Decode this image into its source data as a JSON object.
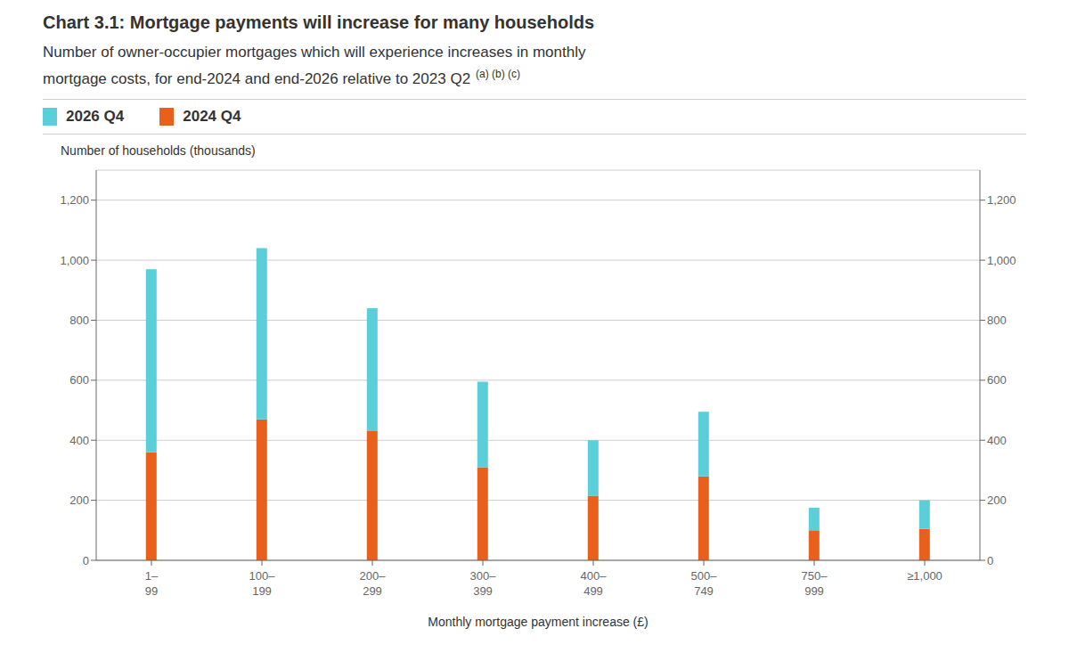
{
  "chart_data": {
    "type": "bar",
    "stacked": true,
    "title": "Chart 3.1: Mortgage payments will increase for many households",
    "subtitle": [
      "Number of owner-occupier mortgages which will experience increases in monthly",
      "mortgage costs, for end-2024 and end-2026 relative to 2023 Q2"
    ],
    "annotations": [
      "(a) (b) (c)"
    ],
    "ylabel": "Number of households (thousands)",
    "xlabel": "Monthly mortgage payment increase (£)",
    "categories": [
      "1–\n99",
      "100–\n199",
      "200–\n299",
      "300–\n399",
      "400–\n499",
      "500–\n749",
      "750–\n999",
      "≥1,000"
    ],
    "series": [
      {
        "name": "2024 Q4",
        "color": "#e8601c",
        "values": [
          360,
          470,
          430,
          310,
          215,
          280,
          100,
          105
        ]
      },
      {
        "name": "2026 Q4",
        "color": "#5acfda",
        "values": [
          610,
          570,
          410,
          285,
          185,
          215,
          75,
          95
        ]
      }
    ],
    "ylim": [
      0,
      1300
    ],
    "yticks": [
      0,
      200,
      400,
      600,
      800,
      {
        "value": 1000,
        "label": "1,000"
      },
      {
        "value": 1200,
        "label": "1,200"
      }
    ],
    "y2lim": [
      0,
      1300
    ],
    "y2ticks": [
      0,
      200,
      400,
      600,
      800,
      {
        "value": 1000,
        "label": "1,000"
      },
      {
        "value": 1200,
        "label": "1,200"
      }
    ],
    "grid": true,
    "legend": "top"
  }
}
